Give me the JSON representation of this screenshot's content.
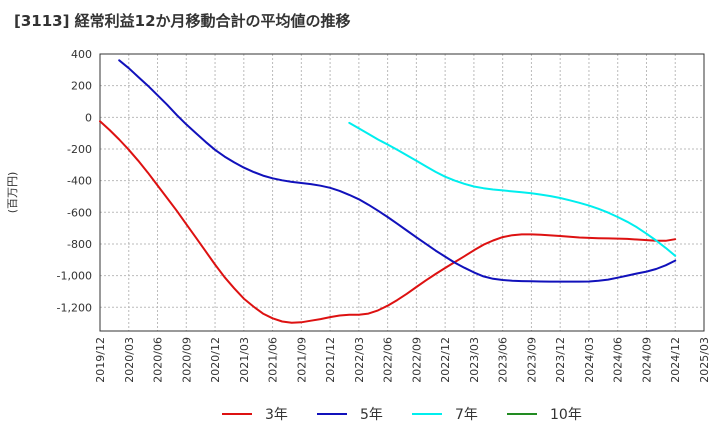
{
  "chart_data": {
    "type": "line",
    "title": "[3113]  経常利益12か月移動合計の平均値の推移",
    "ylabel": "(百万円)",
    "xlabel": "",
    "ylim": [
      -1350,
      400
    ],
    "yticks": [
      400,
      200,
      0,
      -200,
      -400,
      -600,
      -800,
      -1000,
      -1200
    ],
    "ytick_labels": [
      "400",
      "200",
      "0",
      "-200",
      "-400",
      "-600",
      "-800",
      "-1,000",
      "-1,200"
    ],
    "xticks": [
      "2019/12",
      "2020/03",
      "2020/06",
      "2020/09",
      "2020/12",
      "2021/03",
      "2021/06",
      "2021/09",
      "2021/12",
      "2022/03",
      "2022/06",
      "2022/09",
      "2022/12",
      "2023/03",
      "2023/06",
      "2023/09",
      "2023/12",
      "2024/03",
      "2024/06",
      "2024/09",
      "2024/12",
      "2025/03"
    ],
    "legend_position": "bottom",
    "series": [
      {
        "name": "3年",
        "color": "#dd1111",
        "x": [
          "2019/12",
          "2020/01",
          "2020/02",
          "2020/03",
          "2020/04",
          "2020/05",
          "2020/06",
          "2020/07",
          "2020/08",
          "2020/09",
          "2020/10",
          "2020/11",
          "2020/12",
          "2021/01",
          "2021/02",
          "2021/03",
          "2021/04",
          "2021/05",
          "2021/06",
          "2021/07",
          "2021/08",
          "2021/09",
          "2021/10",
          "2021/11",
          "2021/12",
          "2022/01",
          "2022/02",
          "2022/03",
          "2022/04",
          "2022/05",
          "2022/06",
          "2022/07",
          "2022/08",
          "2022/09",
          "2022/10",
          "2022/11",
          "2022/12",
          "2023/01",
          "2023/02",
          "2023/03",
          "2023/04",
          "2023/05",
          "2023/06",
          "2023/07",
          "2023/08",
          "2023/09",
          "2023/10",
          "2023/11",
          "2023/12",
          "2024/01",
          "2024/02",
          "2024/03",
          "2024/04",
          "2024/05",
          "2024/06",
          "2024/07",
          "2024/08",
          "2024/09",
          "2024/10",
          "2024/11",
          "2024/12"
        ],
        "values": [
          -25,
          -80,
          -140,
          -205,
          -275,
          -350,
          -430,
          -510,
          -590,
          -675,
          -760,
          -845,
          -930,
          -1010,
          -1080,
          -1145,
          -1195,
          -1240,
          -1270,
          -1290,
          -1298,
          -1295,
          -1285,
          -1275,
          -1262,
          -1252,
          -1247,
          -1247,
          -1240,
          -1220,
          -1190,
          -1155,
          -1115,
          -1072,
          -1030,
          -990,
          -952,
          -915,
          -878,
          -840,
          -805,
          -778,
          -757,
          -745,
          -740,
          -740,
          -742,
          -746,
          -750,
          -755,
          -759,
          -762,
          -764,
          -765,
          -766,
          -768,
          -772,
          -776,
          -780,
          -780,
          -770
        ]
      },
      {
        "name": "5年",
        "color": "#1111bb",
        "x": [
          "2020/02",
          "2020/03",
          "2020/04",
          "2020/05",
          "2020/06",
          "2020/07",
          "2020/08",
          "2020/09",
          "2020/10",
          "2020/11",
          "2020/12",
          "2021/01",
          "2021/02",
          "2021/03",
          "2021/04",
          "2021/05",
          "2021/06",
          "2021/07",
          "2021/08",
          "2021/09",
          "2021/10",
          "2021/11",
          "2021/12",
          "2022/01",
          "2022/02",
          "2022/03",
          "2022/04",
          "2022/05",
          "2022/06",
          "2022/07",
          "2022/08",
          "2022/09",
          "2022/10",
          "2022/11",
          "2022/12",
          "2023/01",
          "2023/02",
          "2023/03",
          "2023/04",
          "2023/05",
          "2023/06",
          "2023/07",
          "2023/08",
          "2023/09",
          "2023/10",
          "2023/11",
          "2023/12",
          "2024/01",
          "2024/02",
          "2024/03",
          "2024/04",
          "2024/05",
          "2024/06",
          "2024/07",
          "2024/08",
          "2024/09",
          "2024/10",
          "2024/11",
          "2024/12"
        ],
        "values": [
          360,
          310,
          255,
          200,
          140,
          80,
          15,
          -45,
          -100,
          -155,
          -205,
          -248,
          -285,
          -318,
          -345,
          -368,
          -385,
          -398,
          -408,
          -415,
          -422,
          -432,
          -445,
          -465,
          -490,
          -518,
          -552,
          -590,
          -630,
          -672,
          -715,
          -758,
          -800,
          -842,
          -880,
          -918,
          -950,
          -980,
          -1005,
          -1020,
          -1028,
          -1032,
          -1035,
          -1036,
          -1037,
          -1038,
          -1038,
          -1038,
          -1038,
          -1037,
          -1033,
          -1025,
          -1013,
          -1000,
          -987,
          -975,
          -958,
          -935,
          -905
        ]
      },
      {
        "name": "7年",
        "color": "#00eeee",
        "x": [
          "2022/02",
          "2022/03",
          "2022/04",
          "2022/05",
          "2022/06",
          "2022/07",
          "2022/08",
          "2022/09",
          "2022/10",
          "2022/11",
          "2022/12",
          "2023/01",
          "2023/02",
          "2023/03",
          "2023/04",
          "2023/05",
          "2023/06",
          "2023/07",
          "2023/08",
          "2023/09",
          "2023/10",
          "2023/11",
          "2023/12",
          "2024/01",
          "2024/02",
          "2024/03",
          "2024/04",
          "2024/05",
          "2024/06",
          "2024/07",
          "2024/08",
          "2024/09",
          "2024/10",
          "2024/11",
          "2024/12"
        ],
        "values": [
          -35,
          -70,
          -105,
          -140,
          -172,
          -205,
          -240,
          -275,
          -310,
          -345,
          -375,
          -400,
          -420,
          -437,
          -448,
          -456,
          -462,
          -468,
          -474,
          -480,
          -488,
          -498,
          -510,
          -524,
          -540,
          -558,
          -578,
          -602,
          -630,
          -660,
          -695,
          -735,
          -778,
          -825,
          -875
        ]
      },
      {
        "name": "10年",
        "color": "#228b22",
        "x": [],
        "values": []
      }
    ]
  }
}
